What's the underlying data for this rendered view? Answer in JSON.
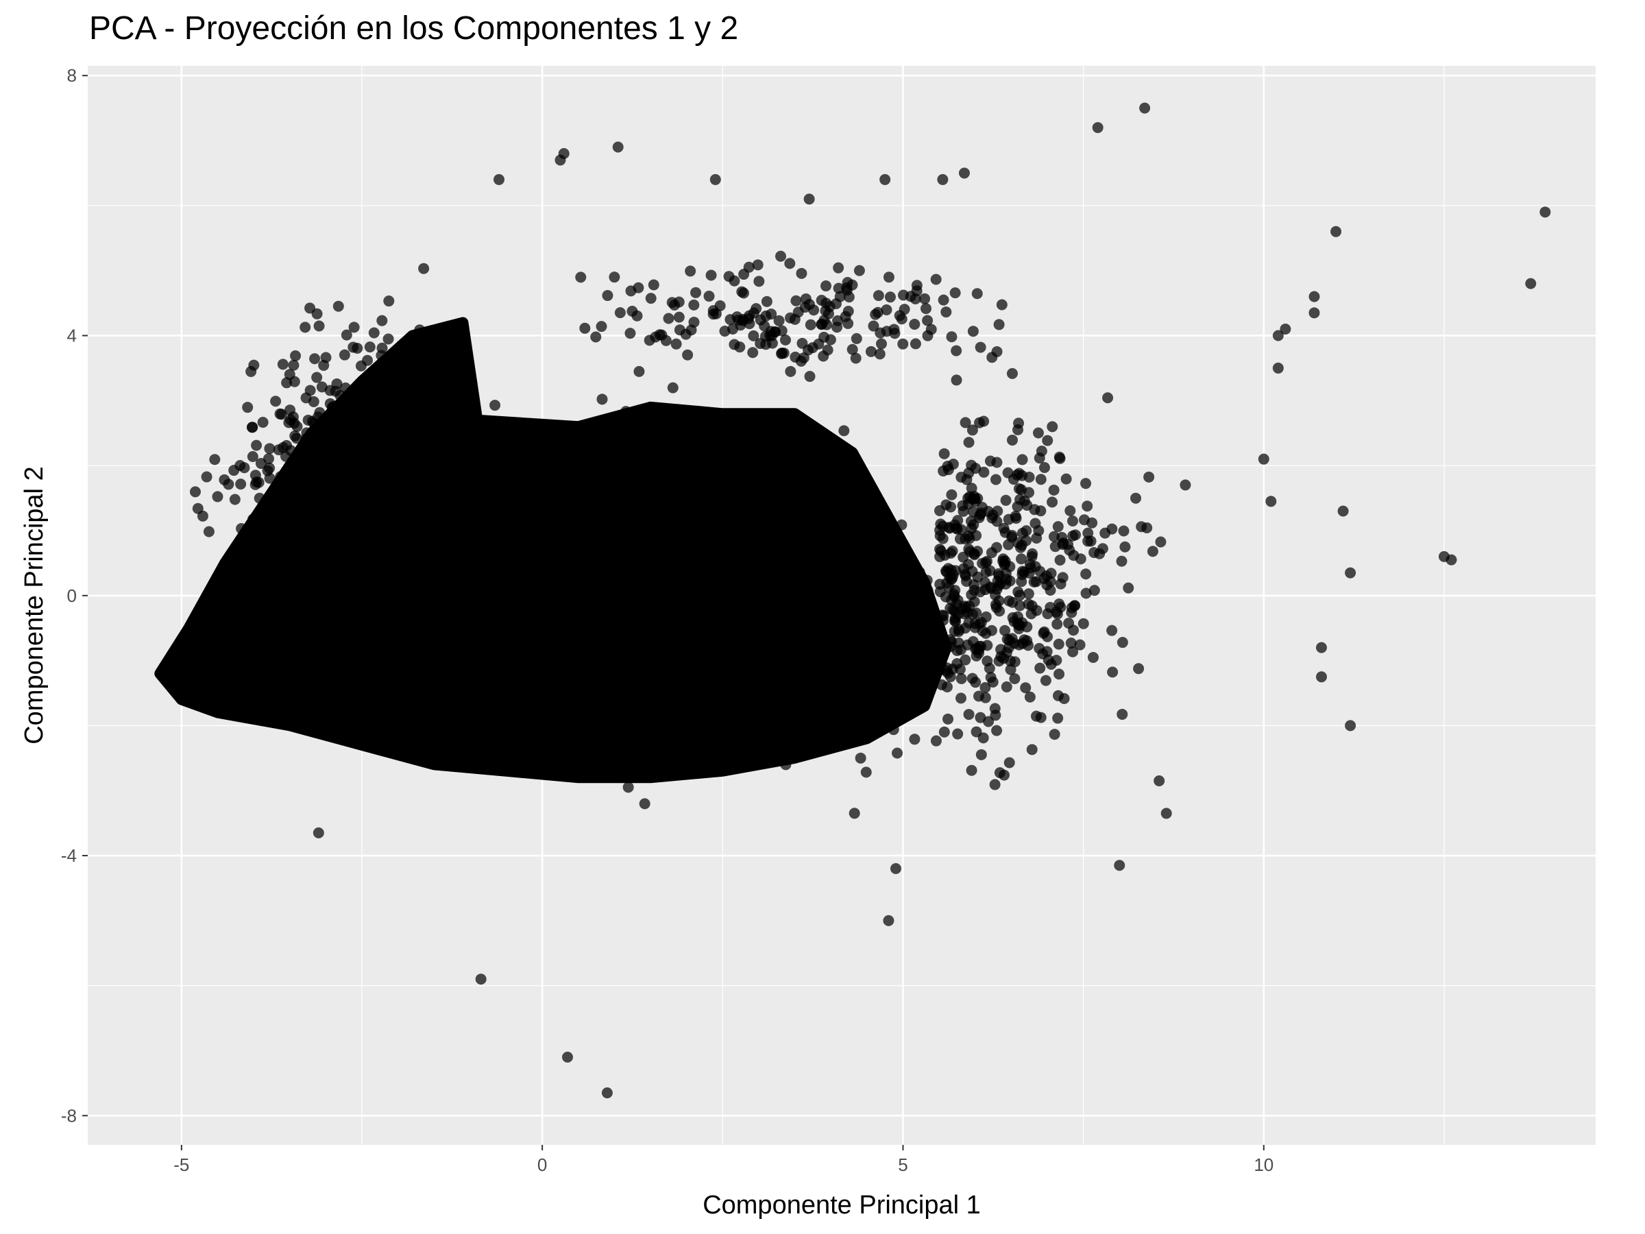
{
  "chart_data": {
    "type": "scatter",
    "title": "PCA - Proyección en los Componentes 1 y 2",
    "xlabel": "Componente Principal 1",
    "ylabel": "Componente Principal 2",
    "xlim": [
      -6.3,
      14.6
    ],
    "ylim": [
      -8.45,
      8.15
    ],
    "x_ticks": [
      -5,
      0,
      5,
      10
    ],
    "x_tick_labels": [
      "-5",
      "0",
      "5",
      "10"
    ],
    "y_ticks": [
      -8,
      -4,
      0,
      4,
      8
    ],
    "y_tick_labels": [
      "-8",
      "-4",
      "0",
      "4",
      "8"
    ],
    "grid": true,
    "legend": "none",
    "point_color": "#000000",
    "point_opacity": 0.7,
    "panel_background": "#ebebeb",
    "gridline_color": "#ffffff",
    "dense_region_outline_approx": [
      [
        -5.3,
        -1.2
      ],
      [
        -4.9,
        -0.5
      ],
      [
        -4.4,
        0.5
      ],
      [
        -3.8,
        1.5
      ],
      [
        -3.2,
        2.5
      ],
      [
        -2.5,
        3.3
      ],
      [
        -1.8,
        4.0
      ],
      [
        -1.1,
        4.2
      ],
      [
        -0.9,
        2.7
      ],
      [
        0.5,
        2.6
      ],
      [
        1.5,
        2.9
      ],
      [
        2.5,
        2.8
      ],
      [
        3.5,
        2.8
      ],
      [
        4.3,
        2.2
      ],
      [
        4.8,
        1.2
      ],
      [
        5.3,
        0.2
      ],
      [
        5.6,
        -0.8
      ],
      [
        5.3,
        -1.7
      ],
      [
        4.5,
        -2.2
      ],
      [
        3.5,
        -2.5
      ],
      [
        2.5,
        -2.7
      ],
      [
        1.5,
        -2.8
      ],
      [
        0.5,
        -2.8
      ],
      [
        -0.5,
        -2.7
      ],
      [
        -1.5,
        -2.6
      ],
      [
        -2.5,
        -2.3
      ],
      [
        -3.5,
        -2.0
      ],
      [
        -4.5,
        -1.8
      ],
      [
        -5.0,
        -1.6
      ]
    ],
    "outlier_points": [
      {
        "x": 13.9,
        "y": 5.9
      },
      {
        "x": 13.7,
        "y": 4.8
      },
      {
        "x": 12.5,
        "y": 0.6
      },
      {
        "x": 12.6,
        "y": 0.55
      },
      {
        "x": 11.2,
        "y": -2.0
      },
      {
        "x": 11.2,
        "y": 0.35
      },
      {
        "x": 11.0,
        "y": 5.6
      },
      {
        "x": 11.1,
        "y": 1.3
      },
      {
        "x": 10.8,
        "y": -0.8
      },
      {
        "x": 10.8,
        "y": -1.25
      },
      {
        "x": 10.7,
        "y": 4.6
      },
      {
        "x": 10.7,
        "y": 4.35
      },
      {
        "x": 10.3,
        "y": 4.1
      },
      {
        "x": 10.2,
        "y": 4.0
      },
      {
        "x": 10.2,
        "y": 3.5
      },
      {
        "x": 10.0,
        "y": 2.1
      },
      {
        "x": 10.1,
        "y": 1.45
      },
      {
        "x": 8.35,
        "y": 7.5
      },
      {
        "x": 7.7,
        "y": 7.2
      },
      {
        "x": 8.0,
        "y": -4.15
      },
      {
        "x": 8.65,
        "y": -3.35
      },
      {
        "x": 8.55,
        "y": -2.85
      },
      {
        "x": 4.8,
        "y": -5.0
      },
      {
        "x": 4.9,
        "y": -4.2
      },
      {
        "x": -0.85,
        "y": -5.9
      },
      {
        "x": 0.35,
        "y": -7.1
      },
      {
        "x": 0.9,
        "y": -7.65
      },
      {
        "x": -3.1,
        "y": -3.65
      },
      {
        "x": 0.25,
        "y": 6.7
      },
      {
        "x": 0.3,
        "y": 6.8
      },
      {
        "x": 1.05,
        "y": 6.9
      },
      {
        "x": -0.6,
        "y": 6.4
      },
      {
        "x": 2.4,
        "y": 6.4
      },
      {
        "x": 5.85,
        "y": 6.5
      },
      {
        "x": 5.55,
        "y": 6.4
      },
      {
        "x": 4.75,
        "y": 6.4
      },
      {
        "x": 3.7,
        "y": 6.1
      },
      {
        "x": 1.0,
        "y": 4.9
      }
    ]
  }
}
